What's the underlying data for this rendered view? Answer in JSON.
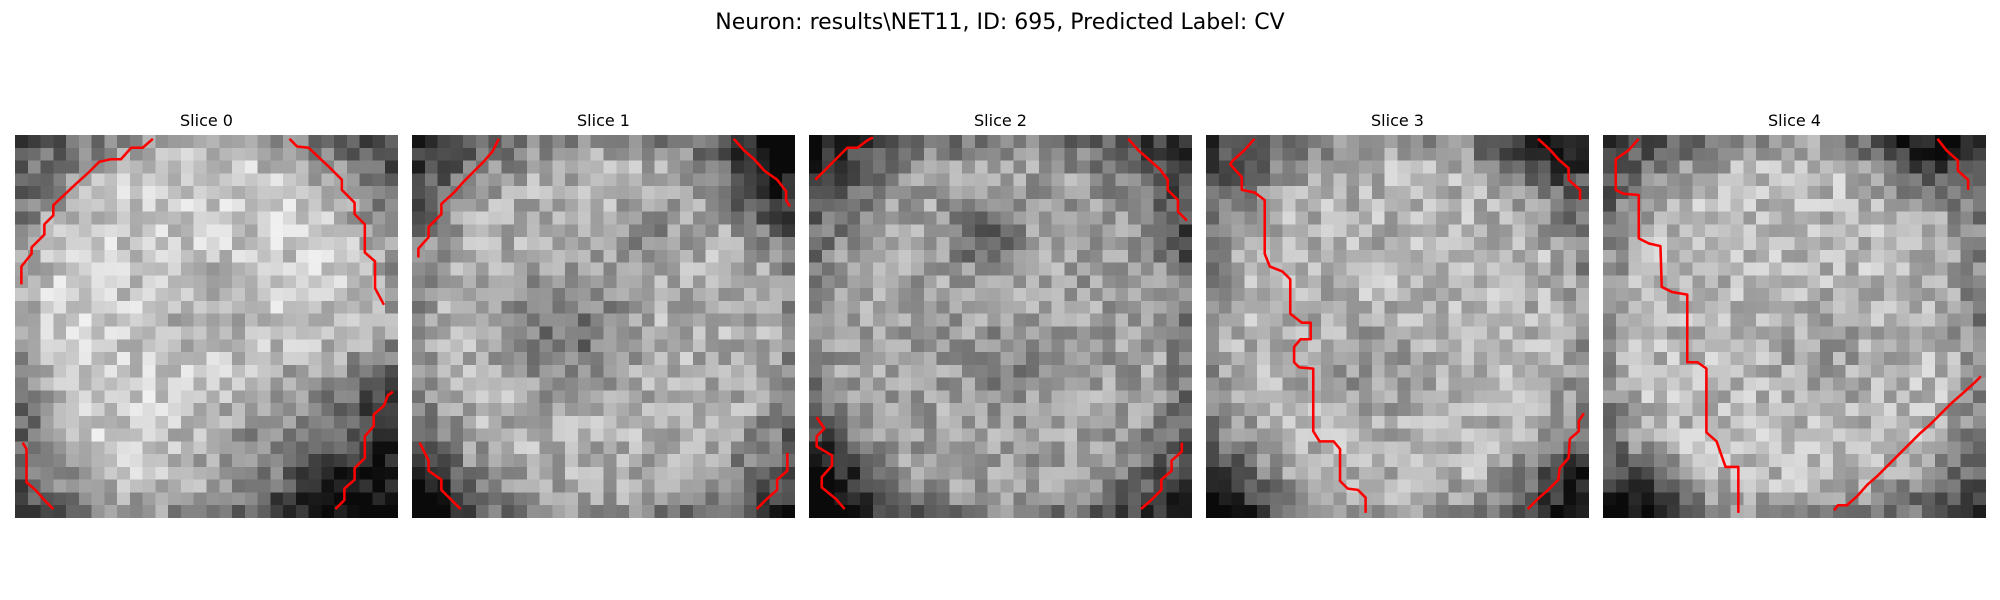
{
  "figure": {
    "suptitle": "Neuron: results\\NET11, ID: 695, Predicted Label: CV"
  },
  "contour_color": "#ff0000",
  "colormap": "gray",
  "slices": [
    {
      "title": "Slice 0"
    },
    {
      "title": "Slice 1"
    },
    {
      "title": "Slice 2"
    },
    {
      "title": "Slice 3"
    },
    {
      "title": "Slice 4"
    }
  ]
}
